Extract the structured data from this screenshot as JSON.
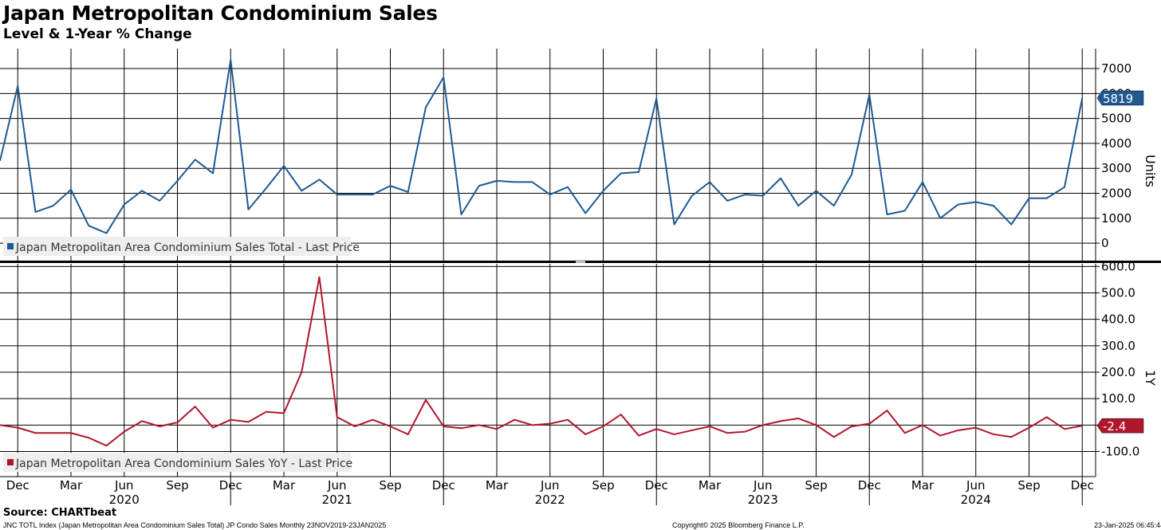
{
  "title": "Japan Metropolitan Condominium Sales",
  "subtitle": "Level & 1-Year % Change",
  "source": "Source: CHARTbeat",
  "footer": {
    "left": "JNC TOTL Index (Japan Metropolitan Area Condominium Sales Total) JP Condo Sales  Monthly 23NOV2019-23JAN2025",
    "center": "Copyright© 2025 Bloomberg Finance L.P.",
    "right": "23-Jan-2025 06:45:44"
  },
  "colors": {
    "level": "#1f5a93",
    "yoy": "#b0172c",
    "grid": "#000000"
  },
  "chart_data": [
    {
      "type": "line",
      "legend": "Japan Metropolitan Area Condominium Sales Total - Last Price",
      "ylabel": "Units",
      "ylim": [
        -700,
        7800
      ],
      "yticks": [
        0,
        1000,
        2000,
        3000,
        4000,
        5000,
        6000,
        7000
      ],
      "last_label": "5819",
      "x": [
        "2019-11",
        "2019-12",
        "2020-01",
        "2020-02",
        "2020-03",
        "2020-04",
        "2020-05",
        "2020-06",
        "2020-07",
        "2020-08",
        "2020-09",
        "2020-10",
        "2020-11",
        "2020-12",
        "2021-01",
        "2021-02",
        "2021-03",
        "2021-04",
        "2021-05",
        "2021-06",
        "2021-07",
        "2021-08",
        "2021-09",
        "2021-10",
        "2021-11",
        "2021-12",
        "2022-01",
        "2022-02",
        "2022-03",
        "2022-04",
        "2022-05",
        "2022-06",
        "2022-07",
        "2022-08",
        "2022-09",
        "2022-10",
        "2022-11",
        "2022-12",
        "2023-01",
        "2023-02",
        "2023-03",
        "2023-04",
        "2023-05",
        "2023-06",
        "2023-07",
        "2023-08",
        "2023-09",
        "2023-10",
        "2023-11",
        "2023-12",
        "2024-01",
        "2024-02",
        "2024-03",
        "2024-04",
        "2024-05",
        "2024-06",
        "2024-07",
        "2024-08",
        "2024-09",
        "2024-10",
        "2024-11",
        "2024-12"
      ],
      "values": [
        3300,
        6300,
        1250,
        1500,
        2150,
        700,
        400,
        1550,
        2100,
        1700,
        2500,
        3350,
        2800,
        7350,
        1350,
        2200,
        3100,
        2100,
        2550,
        1950,
        1950,
        1950,
        2300,
        2050,
        5450,
        6650,
        1150,
        2300,
        2500,
        2450,
        2450,
        1950,
        2250,
        1200,
        2100,
        2800,
        2850,
        5800,
        750,
        1900,
        2450,
        1700,
        1950,
        1900,
        2600,
        1500,
        2100,
        1500,
        2750,
        5950,
        1150,
        1300,
        2450,
        1000,
        1550,
        1650,
        1500,
        750,
        1800,
        1800,
        2250,
        5819
      ]
    },
    {
      "type": "line",
      "legend": "Japan Metropolitan Area Condominium Sales YoY - Last Price",
      "ylabel": "1Y",
      "ylim": [
        -195,
        610
      ],
      "yticks": [
        -100.0,
        0,
        100.0,
        200.0,
        300.0,
        400.0,
        500.0,
        600.0
      ],
      "last_label": "-2.4",
      "values": [
        0,
        -10,
        -30,
        -30,
        -30,
        -48,
        -78,
        -25,
        15,
        -5,
        10,
        70,
        -10,
        20,
        12,
        50,
        45,
        200,
        560,
        30,
        -5,
        20,
        -5,
        -35,
        95,
        -5,
        -12,
        0,
        -15,
        20,
        0,
        5,
        20,
        -35,
        -5,
        40,
        -40,
        -15,
        -35,
        -20,
        -5,
        -30,
        -25,
        0,
        15,
        25,
        0,
        -45,
        -5,
        5,
        55,
        -30,
        0,
        -40,
        -20,
        -10,
        -35,
        -45,
        -10,
        30,
        -15,
        -2.4
      ]
    }
  ],
  "x_axis": {
    "month_labels": [
      "Dec",
      "Mar",
      "Jun",
      "Sep",
      "Dec",
      "Mar",
      "Jun",
      "Sep",
      "Dec",
      "Mar",
      "Jun",
      "Sep",
      "Dec",
      "Mar",
      "Jun",
      "Sep",
      "Dec",
      "Mar",
      "Jun",
      "Sep",
      "Dec"
    ],
    "month_label_index": [
      1,
      4,
      7,
      10,
      13,
      16,
      19,
      22,
      25,
      28,
      31,
      34,
      37,
      40,
      43,
      46,
      49,
      52,
      55,
      58,
      61
    ],
    "year_labels": [
      "2020",
      "2021",
      "2022",
      "2023",
      "2024"
    ],
    "year_label_index": [
      7,
      19,
      31,
      43,
      55
    ],
    "year_sep_index": [
      13,
      25,
      37,
      49,
      61
    ]
  }
}
